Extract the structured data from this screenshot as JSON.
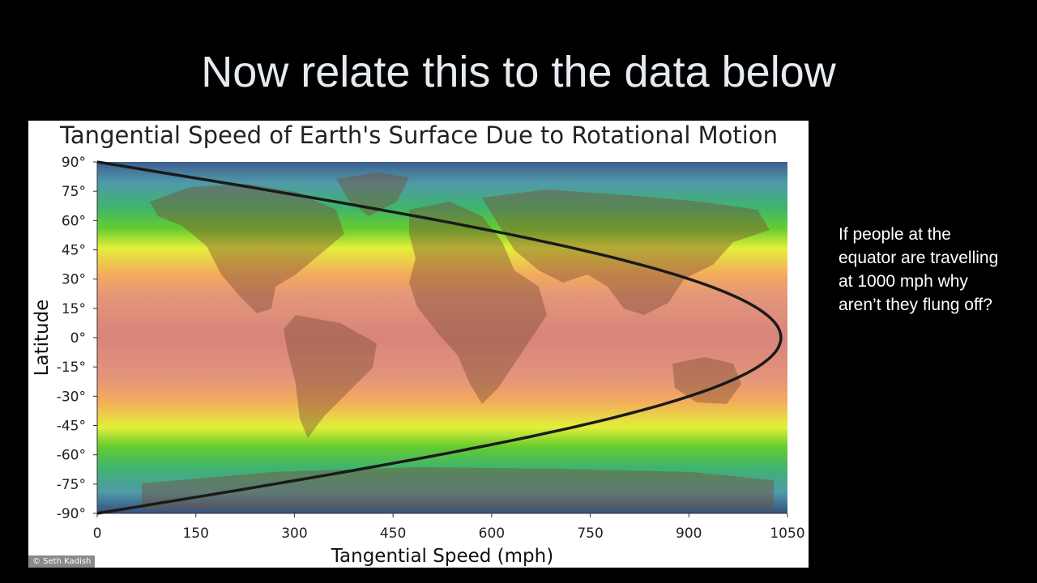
{
  "slide": {
    "title": "Now relate this to the data below",
    "note": "If people at the equator are travelling at 1000 mph why aren’t they flung off?"
  },
  "figure": {
    "credit": "© Seth Kadish"
  },
  "chart_data": {
    "type": "line",
    "title": "Tangential Speed of Earth's Surface Due to Rotational Motion",
    "xlabel": "Tangential Speed (mph)",
    "ylabel": "Latitude",
    "xlim": [
      0,
      1050
    ],
    "ylim": [
      -90,
      90
    ],
    "x_ticks": [
      "0",
      "150",
      "300",
      "450",
      "600",
      "750",
      "900",
      "1050"
    ],
    "y_ticks": [
      "90°",
      "75°",
      "60°",
      "45°",
      "30°",
      "15°",
      "0°",
      "-15°",
      "-30°",
      "-45°",
      "-60°",
      "-75°",
      "-90°"
    ],
    "background": "world map with latitude color bands",
    "series": [
      {
        "color": "#1a1a1a",
        "points": [
          {
            "lat": 90,
            "speed": 0
          },
          {
            "lat": 75,
            "speed": 269
          },
          {
            "lat": 60,
            "speed": 520
          },
          {
            "lat": 45,
            "speed": 735
          },
          {
            "lat": 30,
            "speed": 900
          },
          {
            "lat": 15,
            "speed": 1004
          },
          {
            "lat": 0,
            "speed": 1040
          },
          {
            "lat": -15,
            "speed": 1004
          },
          {
            "lat": -30,
            "speed": 900
          },
          {
            "lat": -45,
            "speed": 735
          },
          {
            "lat": -60,
            "speed": 520
          },
          {
            "lat": -75,
            "speed": 269
          },
          {
            "lat": -90,
            "speed": 0
          }
        ]
      }
    ]
  }
}
